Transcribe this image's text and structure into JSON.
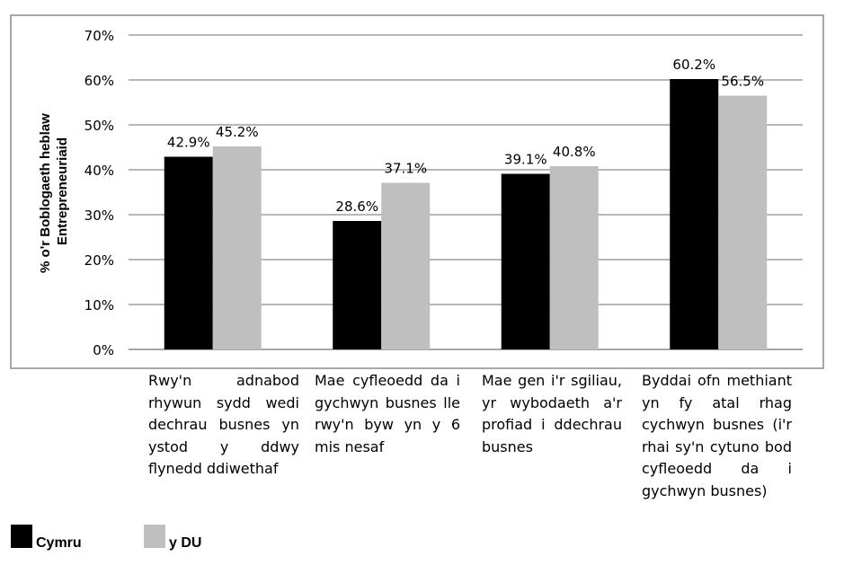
{
  "chart_data": {
    "type": "bar",
    "title": "",
    "ylabel": "% o'r Boblogaeth heblaw Entrepreneuriaid",
    "ylabel_lines": [
      "% o'r Boblogaeth heblaw",
      "Entrepreneuriaid"
    ],
    "xlabel": "",
    "ylim": [
      0,
      70
    ],
    "yticks": [
      0,
      10,
      20,
      30,
      40,
      50,
      60,
      70
    ],
    "ytick_labels": [
      "0%",
      "10%",
      "20%",
      "30%",
      "40%",
      "50%",
      "60%",
      "70%"
    ],
    "grid": true,
    "legend_position": "bottom-left",
    "categories": [
      "Rwy'n adnabod rhywun sydd wedi dechrau busnes yn ystod y ddwy flynedd ddiwethaf",
      "Mae cyfleoedd da i gychwyn busnes lle rwy'n byw yn y 6 mis nesaf",
      "Mae gen i'r sgiliau, yr wybodaeth a'r profiad i ddechrau busnes",
      "Byddai ofn methiant yn fy atal rhag cychwyn busnes (i'r rhai sy'n cytuno bod cyfleoedd da i gychwyn busnes)"
    ],
    "series": [
      {
        "name": "Cymru",
        "color": "#000000",
        "values": [
          42.9,
          28.6,
          39.1,
          60.2
        ],
        "labels": [
          "42.9%",
          "28.6%",
          "39.1%",
          "60.2%"
        ]
      },
      {
        "name": "y DU",
        "color": "#bfbfbf",
        "values": [
          45.2,
          37.1,
          40.8,
          56.5
        ],
        "labels": [
          "45.2%",
          "37.1%",
          "40.8%",
          "56.5%"
        ]
      }
    ]
  }
}
